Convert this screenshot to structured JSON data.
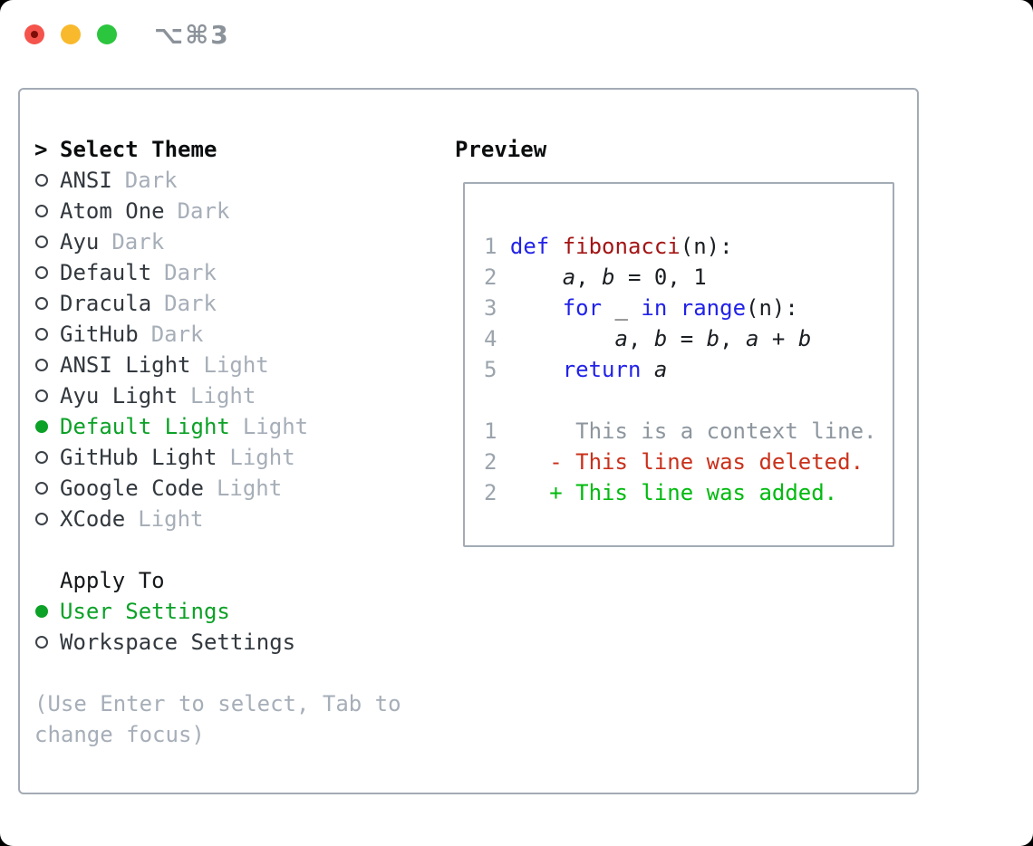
{
  "window": {
    "shortcut_label": "⌥⌘3"
  },
  "traffic_lights": {
    "close_color": "#f4544c",
    "close_dot_color": "#7d0d07",
    "minimize_color": "#f8b92c",
    "zoom_color": "#2cc53e"
  },
  "left": {
    "header_prefix": ">",
    "header_label": "Select Theme",
    "themes": [
      {
        "name": "ANSI",
        "variant": "Dark",
        "selected": false
      },
      {
        "name": "Atom One",
        "variant": "Dark",
        "selected": false
      },
      {
        "name": "Ayu",
        "variant": "Dark",
        "selected": false
      },
      {
        "name": "Default",
        "variant": "Dark",
        "selected": false
      },
      {
        "name": "Dracula",
        "variant": "Dark",
        "selected": false
      },
      {
        "name": "GitHub",
        "variant": "Dark",
        "selected": false
      },
      {
        "name": "ANSI Light",
        "variant": "Light",
        "selected": false
      },
      {
        "name": "Ayu Light",
        "variant": "Light",
        "selected": false
      },
      {
        "name": "Default Light",
        "variant": "Light",
        "selected": true
      },
      {
        "name": "GitHub Light",
        "variant": "Light",
        "selected": false
      },
      {
        "name": "Google Code",
        "variant": "Light",
        "selected": false
      },
      {
        "name": "XCode",
        "variant": "Light",
        "selected": false
      }
    ],
    "apply_header": "Apply To",
    "apply_options": [
      {
        "name": "User Settings",
        "selected": true
      },
      {
        "name": "Workspace Settings",
        "selected": false
      }
    ],
    "hint_line1": "(Use Enter to select, Tab to",
    "hint_line2": "change focus)"
  },
  "preview": {
    "header": "Preview",
    "lines": [
      {
        "segments": [
          {
            "text": "1 ",
            "style": "num"
          },
          {
            "text": "def ",
            "style": "kw"
          },
          {
            "text": "fibonacci",
            "style": "fn"
          },
          {
            "text": "(n):",
            "style": "plain"
          }
        ]
      },
      {
        "segments": [
          {
            "text": "2 ",
            "style": "num"
          },
          {
            "text": "    ",
            "style": "plain"
          },
          {
            "text": "a",
            "style": "var"
          },
          {
            "text": ", ",
            "style": "plain"
          },
          {
            "text": "b",
            "style": "var"
          },
          {
            "text": " = 0, 1",
            "style": "plain"
          }
        ]
      },
      {
        "segments": [
          {
            "text": "3 ",
            "style": "num"
          },
          {
            "text": "    ",
            "style": "plain"
          },
          {
            "text": "for",
            "style": "kw"
          },
          {
            "text": " _ ",
            "style": "plain"
          },
          {
            "text": "in",
            "style": "kw"
          },
          {
            "text": " ",
            "style": "plain"
          },
          {
            "text": "range",
            "style": "kw"
          },
          {
            "text": "(n):",
            "style": "plain"
          }
        ]
      },
      {
        "segments": [
          {
            "text": "4 ",
            "style": "num"
          },
          {
            "text": "        ",
            "style": "plain"
          },
          {
            "text": "a",
            "style": "var"
          },
          {
            "text": ", ",
            "style": "plain"
          },
          {
            "text": "b",
            "style": "var"
          },
          {
            "text": " = ",
            "style": "plain"
          },
          {
            "text": "b",
            "style": "var"
          },
          {
            "text": ", ",
            "style": "plain"
          },
          {
            "text": "a",
            "style": "var"
          },
          {
            "text": " + ",
            "style": "plain"
          },
          {
            "text": "b",
            "style": "var"
          }
        ]
      },
      {
        "segments": [
          {
            "text": "5 ",
            "style": "num"
          },
          {
            "text": "    ",
            "style": "plain"
          },
          {
            "text": "return ",
            "style": "kw"
          },
          {
            "text": "a",
            "style": "var"
          }
        ]
      },
      {
        "segments": []
      },
      {
        "segments": [
          {
            "text": "1",
            "style": "num"
          },
          {
            "text": "      ",
            "style": "plain"
          },
          {
            "text": "This is a context line.",
            "style": "ctx"
          }
        ]
      },
      {
        "segments": [
          {
            "text": "2",
            "style": "num"
          },
          {
            "text": "    ",
            "style": "plain"
          },
          {
            "text": "- This line was deleted.",
            "style": "del"
          }
        ]
      },
      {
        "segments": [
          {
            "text": "2",
            "style": "num"
          },
          {
            "text": "    ",
            "style": "plain"
          },
          {
            "text": "+ This line was added.",
            "style": "add"
          }
        ]
      }
    ]
  },
  "colors": {
    "selection_green": "#0ca127",
    "added_green": "#00ba0e",
    "deleted_red": "#c9311b",
    "function_red": "#a31515",
    "keyword_blue": "#2222e8",
    "muted_gray": "#a6aeb8",
    "line_number_gray": "#9ba4ad",
    "panel_border_gray": "#a3abb5",
    "text_ink": "#32383e"
  }
}
